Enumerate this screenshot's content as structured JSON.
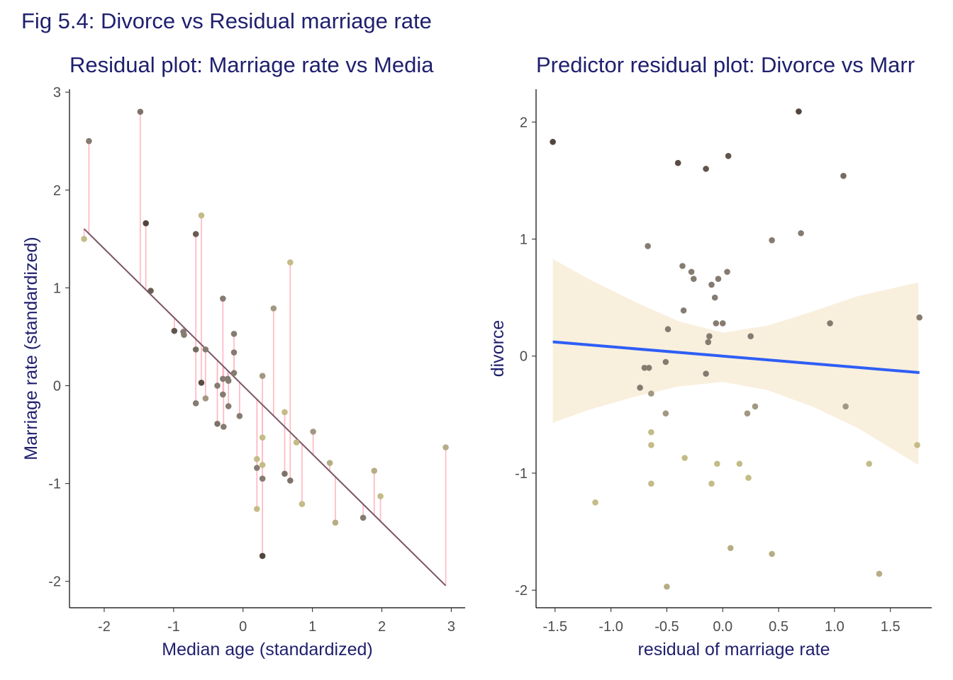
{
  "figure_title": "Fig 5.4: Divorce vs Residual marriage rate",
  "colors": {
    "title": "#1f1f6e",
    "residual_segment": "#ffb6c1",
    "fit_line_left": "#7b5566",
    "fit_line_right": "#2e5ef6",
    "ribbon": "#f7e9d2",
    "palette_low": "#d8d08a",
    "palette_mid": "#948a80",
    "palette_high": "#4a3d35"
  },
  "chart_data": [
    {
      "type": "scatter",
      "title": "Residual plot:  Marriage rate vs Media",
      "xlabel": "Median age (standardized)",
      "ylabel": "Marriage rate (standardized)",
      "xlim": [
        -2.5,
        3.2
      ],
      "ylim": [
        -2.27,
        3.03
      ],
      "xticks": [
        -2,
        -1,
        0,
        1,
        2,
        3
      ],
      "xtick_labels": [
        "-2",
        "-1",
        "0",
        "1",
        "2",
        "3"
      ],
      "yticks": [
        -2,
        -1,
        0,
        1,
        2,
        3
      ],
      "ytick_labels": [
        "-2",
        "-1",
        "0",
        "1",
        "2",
        "3"
      ],
      "grid": false,
      "fit_line": {
        "intercept": 0.0,
        "slope": -0.7
      },
      "residual_segments": true,
      "points": [
        {
          "x": -2.29,
          "y": 1.5,
          "c": 0.15
        },
        {
          "x": -2.22,
          "y": 2.5,
          "c": 0.6
        },
        {
          "x": -1.48,
          "y": 2.8,
          "c": 0.65
        },
        {
          "x": -1.4,
          "y": 1.66,
          "c": 0.95
        },
        {
          "x": -1.33,
          "y": 0.97,
          "c": 0.8
        },
        {
          "x": -0.99,
          "y": 0.56,
          "c": 0.85
        },
        {
          "x": -0.86,
          "y": 0.55,
          "c": 0.6
        },
        {
          "x": -0.85,
          "y": 0.52,
          "c": 0.6
        },
        {
          "x": -0.68,
          "y": 1.55,
          "c": 0.8
        },
        {
          "x": -0.68,
          "y": 0.37,
          "c": 0.7
        },
        {
          "x": -0.68,
          "y": -0.18,
          "c": 0.6
        },
        {
          "x": -0.6,
          "y": 1.74,
          "c": 0.15
        },
        {
          "x": -0.6,
          "y": 0.03,
          "c": 0.9
        },
        {
          "x": -0.54,
          "y": 0.37,
          "c": 0.6
        },
        {
          "x": -0.54,
          "y": -0.13,
          "c": 0.4
        },
        {
          "x": -0.37,
          "y": 0.0,
          "c": 0.6
        },
        {
          "x": -0.37,
          "y": -0.39,
          "c": 0.65
        },
        {
          "x": -0.29,
          "y": 0.89,
          "c": 0.6
        },
        {
          "x": -0.29,
          "y": 0.07,
          "c": 0.6
        },
        {
          "x": -0.29,
          "y": -0.09,
          "c": 0.6
        },
        {
          "x": -0.28,
          "y": -0.42,
          "c": 0.6
        },
        {
          "x": -0.22,
          "y": 0.07,
          "c": 0.6
        },
        {
          "x": -0.21,
          "y": 0.05,
          "c": 0.6
        },
        {
          "x": -0.21,
          "y": -0.21,
          "c": 0.6
        },
        {
          "x": -0.13,
          "y": 0.53,
          "c": 0.6
        },
        {
          "x": -0.13,
          "y": 0.34,
          "c": 0.6
        },
        {
          "x": -0.13,
          "y": 0.13,
          "c": 0.6
        },
        {
          "x": -0.05,
          "y": -0.31,
          "c": 0.6
        },
        {
          "x": 0.2,
          "y": -0.75,
          "c": 0.15
        },
        {
          "x": 0.2,
          "y": -0.84,
          "c": 0.6
        },
        {
          "x": 0.2,
          "y": -1.26,
          "c": 0.15
        },
        {
          "x": 0.28,
          "y": 0.1,
          "c": 0.4
        },
        {
          "x": 0.28,
          "y": -0.53,
          "c": 0.15
        },
        {
          "x": 0.28,
          "y": -0.81,
          "c": 0.15
        },
        {
          "x": 0.28,
          "y": -0.95,
          "c": 0.6
        },
        {
          "x": 0.28,
          "y": -1.74,
          "c": 0.95
        },
        {
          "x": 0.44,
          "y": 0.79,
          "c": 0.4
        },
        {
          "x": 0.6,
          "y": -0.27,
          "c": 0.15
        },
        {
          "x": 0.6,
          "y": -0.9,
          "c": 0.65
        },
        {
          "x": 0.68,
          "y": 1.26,
          "c": 0.15
        },
        {
          "x": 0.68,
          "y": -0.97,
          "c": 0.65
        },
        {
          "x": 0.77,
          "y": -0.58,
          "c": 0.15
        },
        {
          "x": 0.85,
          "y": -1.21,
          "c": 0.15
        },
        {
          "x": 1.01,
          "y": -0.47,
          "c": 0.4
        },
        {
          "x": 1.25,
          "y": -0.79,
          "c": 0.25
        },
        {
          "x": 1.33,
          "y": -1.4,
          "c": 0.25
        },
        {
          "x": 1.73,
          "y": -1.35,
          "c": 0.6
        },
        {
          "x": 1.89,
          "y": -0.87,
          "c": 0.25
        },
        {
          "x": 1.98,
          "y": -1.13,
          "c": 0.15
        },
        {
          "x": 2.92,
          "y": -0.63,
          "c": 0.25
        }
      ]
    },
    {
      "type": "scatter",
      "title": "Predictor residual plot: Divorce vs Marr",
      "xlabel": "residual of marriage rate",
      "ylabel": "divorce",
      "xlim": [
        -1.67,
        1.87
      ],
      "ylim": [
        -2.15,
        2.28
      ],
      "xticks": [
        -1.5,
        -1.0,
        -0.5,
        0.0,
        0.5,
        1.0,
        1.5
      ],
      "xtick_labels": [
        "-1.5",
        "-1.0",
        "-0.5",
        "0.0",
        "0.5",
        "1.0",
        "1.5"
      ],
      "yticks": [
        -2,
        -1,
        0,
        1,
        2
      ],
      "ytick_labels": [
        "-2",
        "-1",
        "0",
        "1",
        "2"
      ],
      "grid": false,
      "fit_line": {
        "intercept": 0.0,
        "slope": -0.08
      },
      "confidence_band": {
        "x": [
          -1.52,
          -1.2,
          -0.8,
          -0.4,
          0.0,
          0.4,
          0.8,
          1.2,
          1.75
        ],
        "lo": [
          -0.57,
          -0.46,
          -0.35,
          -0.26,
          -0.22,
          -0.29,
          -0.43,
          -0.61,
          -0.93
        ],
        "hi": [
          0.83,
          0.66,
          0.47,
          0.3,
          0.2,
          0.26,
          0.38,
          0.51,
          0.63
        ]
      },
      "points": [
        {
          "x": -1.52,
          "y": 1.83,
          "c": 0.95
        },
        {
          "x": -1.14,
          "y": -1.25,
          "c": 0.15
        },
        {
          "x": -0.74,
          "y": -0.27,
          "c": 0.6
        },
        {
          "x": -0.7,
          "y": -0.1,
          "c": 0.6
        },
        {
          "x": -0.67,
          "y": 0.94,
          "c": 0.6
        },
        {
          "x": -0.66,
          "y": -0.1,
          "c": 0.6
        },
        {
          "x": -0.64,
          "y": -0.32,
          "c": 0.4
        },
        {
          "x": -0.64,
          "y": -0.65,
          "c": 0.15
        },
        {
          "x": -0.64,
          "y": -0.76,
          "c": 0.15
        },
        {
          "x": -0.64,
          "y": -1.09,
          "c": 0.15
        },
        {
          "x": -0.51,
          "y": -0.05,
          "c": 0.6
        },
        {
          "x": -0.51,
          "y": -0.49,
          "c": 0.4
        },
        {
          "x": -0.5,
          "y": -1.97,
          "c": 0.25
        },
        {
          "x": -0.49,
          "y": 0.23,
          "c": 0.6
        },
        {
          "x": -0.4,
          "y": 1.65,
          "c": 0.9
        },
        {
          "x": -0.36,
          "y": 0.77,
          "c": 0.6
        },
        {
          "x": -0.35,
          "y": 0.39,
          "c": 0.6
        },
        {
          "x": -0.34,
          "y": -0.87,
          "c": 0.15
        },
        {
          "x": -0.28,
          "y": 0.72,
          "c": 0.6
        },
        {
          "x": -0.26,
          "y": 0.66,
          "c": 0.6
        },
        {
          "x": -0.15,
          "y": 1.6,
          "c": 0.85
        },
        {
          "x": -0.15,
          "y": -0.15,
          "c": 0.6
        },
        {
          "x": -0.13,
          "y": 0.12,
          "c": 0.6
        },
        {
          "x": -0.12,
          "y": 0.17,
          "c": 0.6
        },
        {
          "x": -0.1,
          "y": 0.61,
          "c": 0.6
        },
        {
          "x": -0.1,
          "y": -1.09,
          "c": 0.15
        },
        {
          "x": -0.07,
          "y": 0.5,
          "c": 0.6
        },
        {
          "x": -0.06,
          "y": 0.28,
          "c": 0.6
        },
        {
          "x": -0.05,
          "y": -0.92,
          "c": 0.15
        },
        {
          "x": -0.04,
          "y": 0.66,
          "c": 0.6
        },
        {
          "x": 0.0,
          "y": 0.28,
          "c": 0.6
        },
        {
          "x": 0.04,
          "y": 0.72,
          "c": 0.6
        },
        {
          "x": 0.05,
          "y": 1.71,
          "c": 0.85
        },
        {
          "x": 0.07,
          "y": -1.64,
          "c": 0.25
        },
        {
          "x": 0.15,
          "y": -0.92,
          "c": 0.15
        },
        {
          "x": 0.22,
          "y": -0.49,
          "c": 0.4
        },
        {
          "x": 0.23,
          "y": -1.04,
          "c": 0.15
        },
        {
          "x": 0.25,
          "y": 0.17,
          "c": 0.6
        },
        {
          "x": 0.29,
          "y": -0.43,
          "c": 0.4
        },
        {
          "x": 0.44,
          "y": 0.99,
          "c": 0.6
        },
        {
          "x": 0.44,
          "y": -1.69,
          "c": 0.25
        },
        {
          "x": 0.68,
          "y": 2.09,
          "c": 0.95
        },
        {
          "x": 0.7,
          "y": 1.05,
          "c": 0.6
        },
        {
          "x": 0.96,
          "y": 0.28,
          "c": 0.6
        },
        {
          "x": 1.08,
          "y": 1.54,
          "c": 0.7
        },
        {
          "x": 1.1,
          "y": -0.43,
          "c": 0.4
        },
        {
          "x": 1.31,
          "y": -0.92,
          "c": 0.15
        },
        {
          "x": 1.4,
          "y": -1.86,
          "c": 0.25
        },
        {
          "x": 1.74,
          "y": -0.76,
          "c": 0.15
        },
        {
          "x": 1.76,
          "y": 0.33,
          "c": 0.6
        }
      ]
    }
  ]
}
